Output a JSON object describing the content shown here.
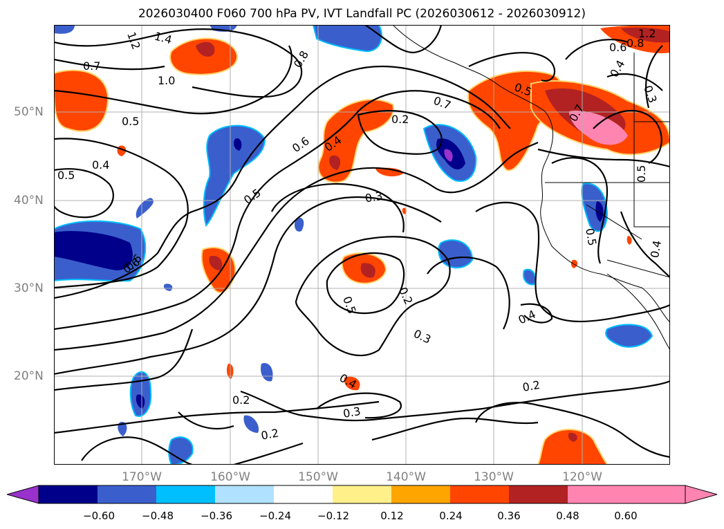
{
  "title": "2026030400 F060 700 hPa PV, IVT Landfall PC (2026030612 - 2026030912)",
  "map": {
    "lon_labels": [
      "170°W",
      "160°W",
      "150°W",
      "140°W",
      "130°W",
      "120°W"
    ],
    "lat_labels": [
      "50°N",
      "40°N",
      "30°N",
      "20°N"
    ],
    "contour_labels": [
      "1.4",
      "1.0",
      "0.8",
      "0.7",
      "0.5",
      "0.4",
      "0.5",
      "0.5",
      "0.6",
      "0.6",
      "0.4",
      "0.2",
      "0.3",
      "0.7",
      "0.5",
      "0.7",
      "0.4",
      "0.3",
      "0.5",
      "0.5",
      "0.4",
      "0.5",
      "0.2",
      "0.3",
      "0.4",
      "0.4",
      "0.2",
      "0.3",
      "0.2",
      "0.2",
      "0.6",
      "0.6",
      "0.8",
      "1.2",
      "1.2"
    ]
  },
  "colorbar": {
    "ticks": [
      "−0.60",
      "−0.48",
      "−0.36",
      "−0.24",
      "−0.12",
      "0.12",
      "0.24",
      "0.36",
      "0.48",
      "0.60"
    ],
    "colors": [
      "#9932cc",
      "#00008b",
      "#3a5fcd",
      "#00bfff",
      "#b0e2ff",
      "#ffffff",
      "#fff08a",
      "#ffa500",
      "#ff4500",
      "#b22222",
      "#ff85b0",
      "#ff85b0"
    ]
  }
}
